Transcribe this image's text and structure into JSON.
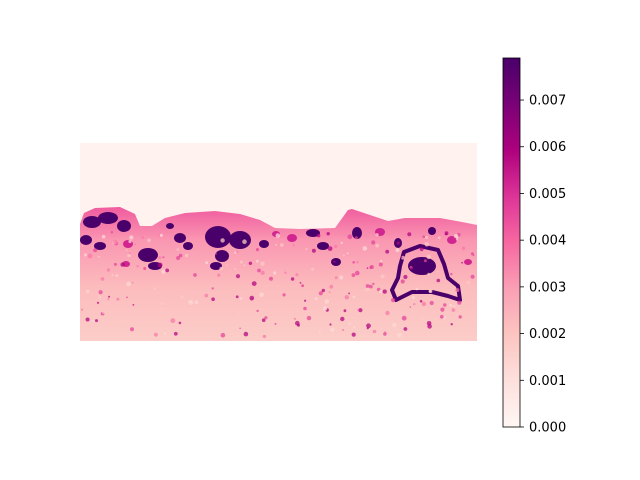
{
  "chart_data": {
    "type": "heatmap",
    "title": "",
    "xlabel": "",
    "ylabel": "",
    "axes_visible": false,
    "colormap": "RdPu",
    "colormap_stops": [
      "#fff7f3",
      "#fde0dd",
      "#fcc5c0",
      "#fa9fb5",
      "#f768a1",
      "#dd3497",
      "#ae017e",
      "#7a0177",
      "#49006a"
    ],
    "colorbar": {
      "range": [
        0,
        0.0079
      ],
      "ticks": [
        0,
        0.001,
        0.002,
        0.003,
        0.004,
        0.005,
        0.006,
        0.007
      ],
      "tick_labels": [
        "0.000",
        "0.001",
        "0.002",
        "0.003",
        "0.004",
        "0.005",
        "0.006",
        "0.007"
      ],
      "orientation": "vertical",
      "placement": "right"
    },
    "description_values": {
      "top_region_level": 0.0002,
      "lower_band_level": 0.0024,
      "hotspot_level": 0.0079
    }
  }
}
